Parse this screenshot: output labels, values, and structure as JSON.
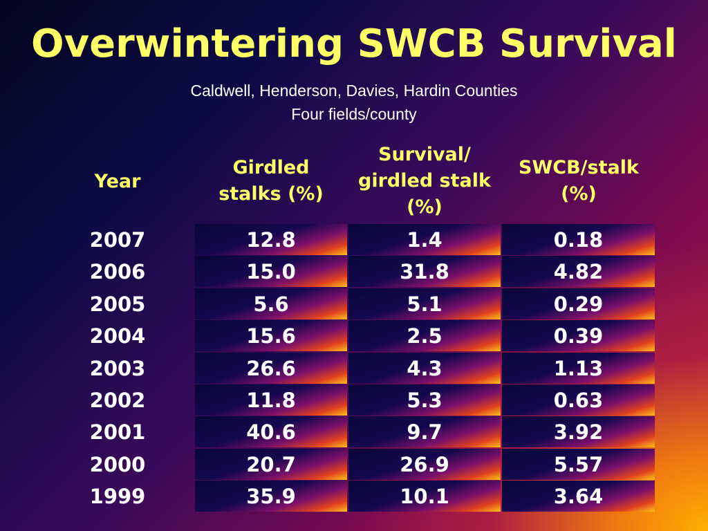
{
  "title": "Overwintering SWCB Survival",
  "subtitle_line1": "Caldwell, Henderson, Davies, Hardin Counties",
  "subtitle_line2": "Four fields/county",
  "headers": {
    "year": "Year",
    "girdled_line1": "Girdled",
    "girdled_line2": "stalks (%)",
    "survival_line1": "Survival/",
    "survival_line2": "girdled stalk",
    "survival_line3": "(%)",
    "swcb_line1": "SWCB/stalk",
    "swcb_line2": "(%)"
  },
  "rows": [
    {
      "year": "2007",
      "girdled": "12.8",
      "survival": "1.4",
      "swcb": "0.18"
    },
    {
      "year": "2006",
      "girdled": "15.0",
      "survival": "31.8",
      "swcb": "4.82"
    },
    {
      "year": "2005",
      "girdled": "5.6",
      "survival": "5.1",
      "swcb": "0.29"
    },
    {
      "year": "2004",
      "girdled": "15.6",
      "survival": "2.5",
      "swcb": "0.39"
    },
    {
      "year": "2003",
      "girdled": "26.6",
      "survival": "4.3",
      "swcb": "1.13"
    },
    {
      "year": "2002",
      "girdled": "11.8",
      "survival": "5.3",
      "swcb": "0.63"
    },
    {
      "year": "2001",
      "girdled": "40.6",
      "survival": "9.7",
      "swcb": "3.92"
    },
    {
      "year": "2000",
      "girdled": "20.7",
      "survival": "26.9",
      "swcb": "5.57"
    },
    {
      "year": "1999",
      "girdled": "35.9",
      "survival": "10.1",
      "swcb": "3.64"
    }
  ],
  "colors": {
    "title": "#ffff66",
    "header": "#ffff66",
    "text": "#ffffff"
  }
}
